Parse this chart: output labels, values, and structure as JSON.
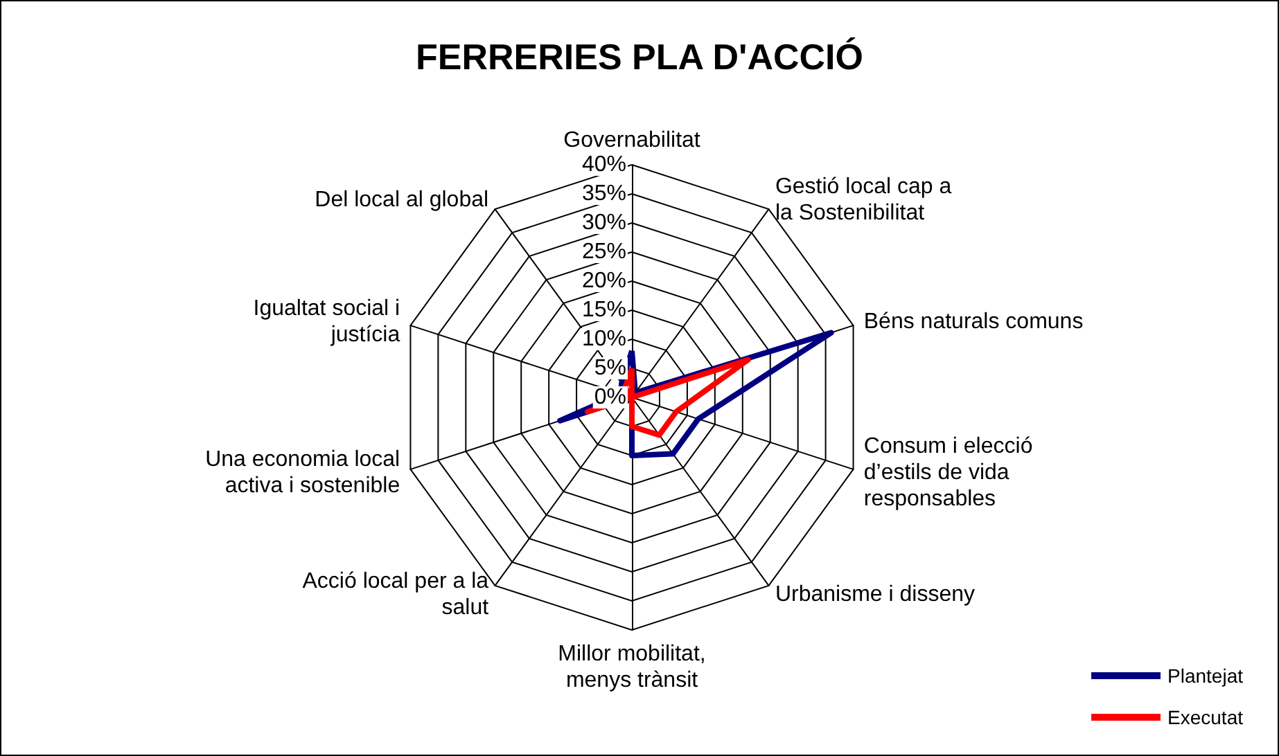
{
  "chart_data": {
    "type": "radar",
    "title": "FERRERIES PLA D'ACCIÓ",
    "categories": [
      "Governabilitat",
      "Gestió local cap a la Sostenibilitat",
      "Béns naturals comuns",
      "Consum i elecció d’estils de vida responsables",
      "Urbanisme i disseny",
      "Millor mobilitat, menys trànsit",
      "Acció local per a la salut",
      "Una economia local activa i sostenible",
      "Igualtat social i justícia",
      "Del local al global"
    ],
    "series": [
      {
        "name": "Plantejat",
        "color": "#000080",
        "values": [
          8,
          1,
          36,
          12,
          12,
          10,
          0,
          13,
          2,
          3
        ]
      },
      {
        "name": "Executat",
        "color": "#ff0000",
        "values": [
          5,
          0,
          21,
          8,
          8,
          5,
          0,
          8,
          0,
          2
        ]
      }
    ],
    "ylim": [
      0,
      40
    ],
    "yticks": [
      {
        "value": 0,
        "label": "0%"
      },
      {
        "value": 5,
        "label": "5%"
      },
      {
        "value": 10,
        "label": "10%"
      },
      {
        "value": 15,
        "label": "15%"
      },
      {
        "value": 20,
        "label": "20%"
      },
      {
        "value": 25,
        "label": "25%"
      },
      {
        "value": 30,
        "label": "30%"
      },
      {
        "value": 35,
        "label": "35%"
      },
      {
        "value": 40,
        "label": "40%"
      }
    ],
    "legend": "bottom right",
    "marker": "none"
  }
}
